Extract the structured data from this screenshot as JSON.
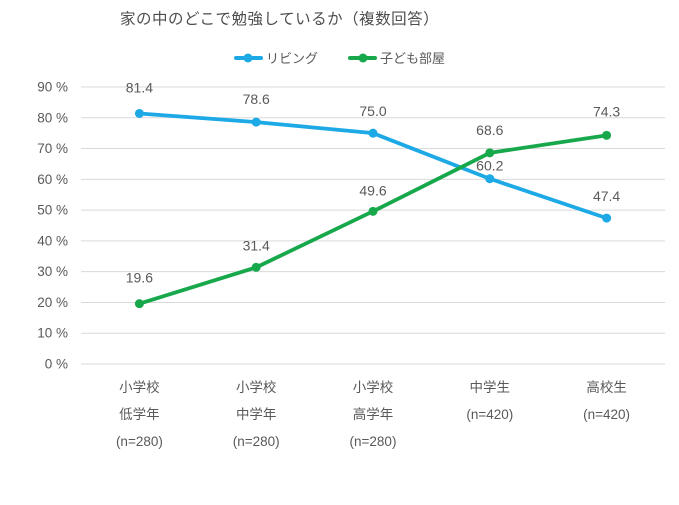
{
  "page": {
    "background": "#ffffff",
    "text_color": "#595959",
    "title_color": "#4d4d4d"
  },
  "chart_data": {
    "type": "line",
    "title": "家の中のどこで勉強しているか（複数回答）",
    "categories": [
      {
        "lines": [
          "小学校",
          "低学年",
          "(n=280)"
        ]
      },
      {
        "lines": [
          "小学校",
          "中学年",
          "(n=280)"
        ]
      },
      {
        "lines": [
          "小学校",
          "高学年",
          "(n=280)"
        ]
      },
      {
        "lines": [
          "中学生",
          "(n=420)"
        ]
      },
      {
        "lines": [
          "高校生",
          "(n=420)"
        ]
      }
    ],
    "series": [
      {
        "name": "リビング",
        "color": "#1CA9E5",
        "values": [
          81.4,
          78.6,
          75.0,
          60.2,
          47.4
        ]
      },
      {
        "name": "子ども部屋",
        "color": "#18A84C",
        "values": [
          19.6,
          31.4,
          49.6,
          68.6,
          74.3
        ]
      }
    ],
    "yticks": [
      {
        "value": 90,
        "label": "90 %"
      },
      {
        "value": 80,
        "label": "80 %"
      },
      {
        "value": 70,
        "label": "70 %"
      },
      {
        "value": 60,
        "label": "60 %"
      },
      {
        "value": 50,
        "label": "50 %"
      },
      {
        "value": 40,
        "label": "40 %"
      },
      {
        "value": 30,
        "label": "30 %"
      },
      {
        "value": 20,
        "label": "20 %"
      },
      {
        "value": 10,
        "label": "10 %"
      },
      {
        "value": 0,
        "label": "0 %"
      }
    ],
    "ylim": [
      0,
      90
    ],
    "grid": "horizontal",
    "grid_color": "#D9D9D9",
    "value_labels": true,
    "value_label_decimals": 1,
    "legend_position": "top-center"
  }
}
